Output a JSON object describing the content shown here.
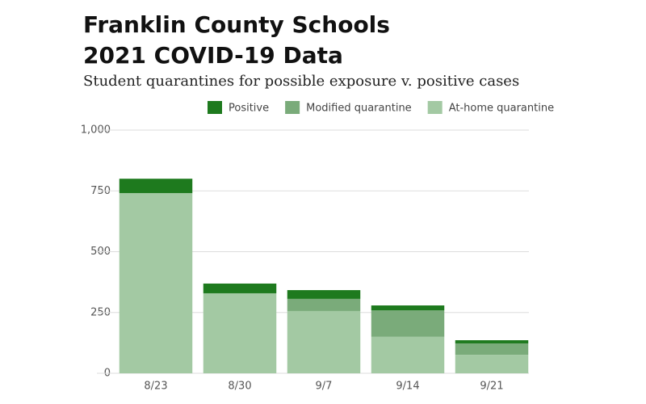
{
  "chart_data": {
    "type": "stacked-bar",
    "title": [
      "Franklin County Schools",
      "2021 COVID-19 Data"
    ],
    "subtitle": "Student quarantines for possible exposure v. positive cases",
    "categories": [
      "8/23",
      "8/30",
      "9/7",
      "9/14",
      "9/21"
    ],
    "series": [
      {
        "name": "Positive",
        "color": "#1e7a1e",
        "values": [
          59,
          40,
          36,
          20,
          13
        ]
      },
      {
        "name": "Modified quarantine",
        "color": "#7aab7a",
        "values": [
          0,
          0,
          50,
          109,
          47
        ]
      },
      {
        "name": "At-home quarantine",
        "color": "#a3c9a3",
        "values": [
          741,
          329,
          256,
          150,
          76
        ]
      }
    ],
    "ylim": [
      0,
      1000
    ],
    "yticks": [
      0,
      250,
      500,
      750,
      {
        "value": 1000,
        "label": "1,000"
      }
    ],
    "grid": true
  }
}
